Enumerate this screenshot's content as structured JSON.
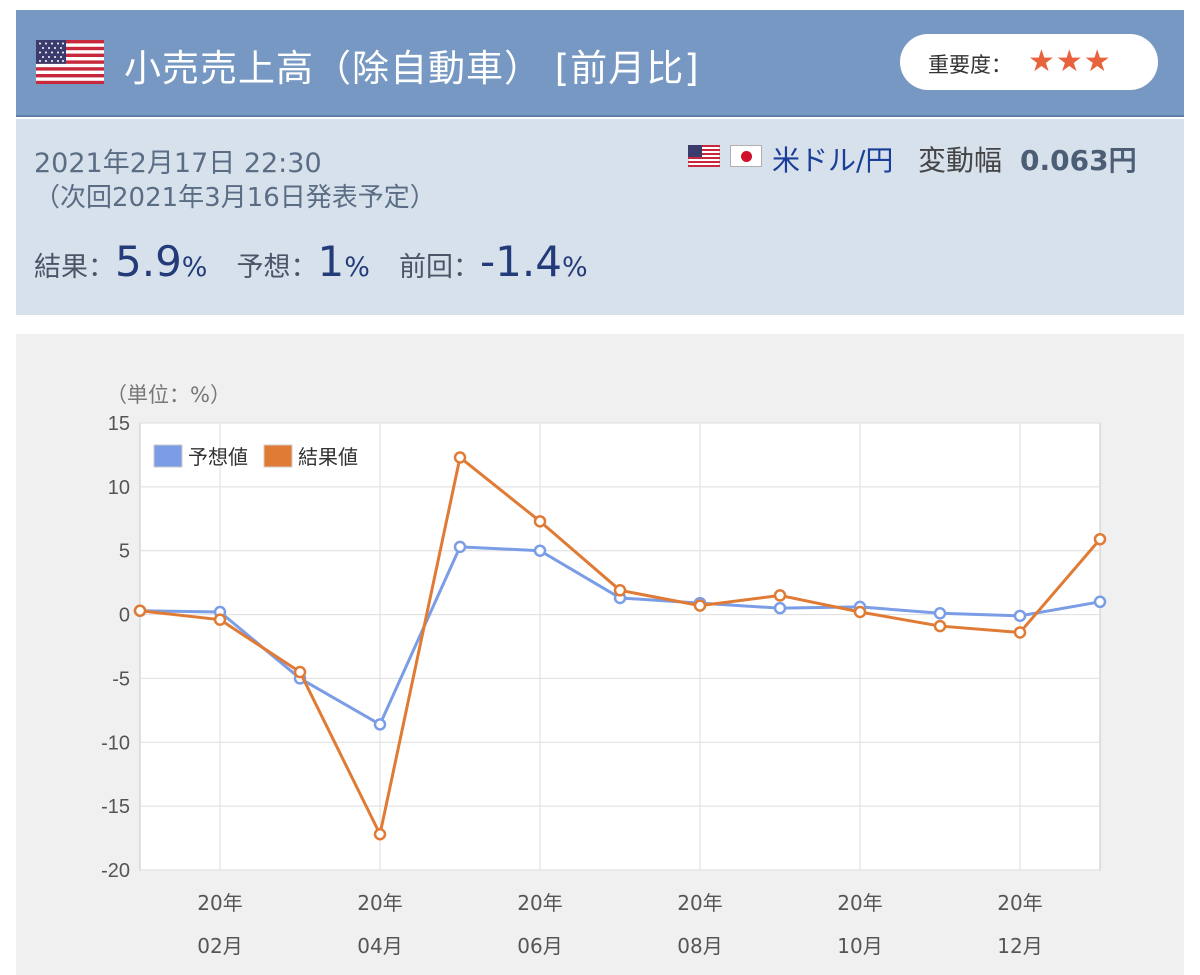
{
  "header": {
    "title": "小売売上高（除自動車） [前月比]",
    "importance_label": "重要度：",
    "stars": "★★★",
    "flag_icon": "us-flag-icon"
  },
  "info": {
    "datetime": "2021年2月17日 22:30",
    "next_release": "（次回2021年3月16日発表予定）",
    "pair": "米ドル/円",
    "range_label": "変動幅",
    "range_value": "0.063円",
    "result_label": "結果：",
    "result_value": "5.9",
    "result_unit": "%",
    "forecast_label": "予想：",
    "forecast_value": "1",
    "forecast_unit": "%",
    "previous_label": "前回：",
    "previous_value": "-1.4",
    "previous_unit": "%"
  },
  "colors": {
    "header_bg": "#7698c2",
    "info_bg": "#d7e1ec",
    "forecast_series": "#7a9de6",
    "result_series": "#e07b35",
    "star": "#e8633b"
  },
  "chart_data": {
    "type": "line",
    "unit_label": "（単位：%）",
    "ylim": [
      -20,
      15
    ],
    "yticks": [
      15,
      10,
      5,
      0,
      -5,
      -10,
      -15,
      -20
    ],
    "x_tick_labels": [
      {
        "index": 1,
        "line1": "20年",
        "line2": "02月"
      },
      {
        "index": 3,
        "line1": "20年",
        "line2": "04月"
      },
      {
        "index": 5,
        "line1": "20年",
        "line2": "06月"
      },
      {
        "index": 7,
        "line1": "20年",
        "line2": "08月"
      },
      {
        "index": 9,
        "line1": "20年",
        "line2": "10月"
      },
      {
        "index": 11,
        "line1": "20年",
        "line2": "12月"
      }
    ],
    "series": [
      {
        "name": "予想値",
        "color": "#7a9de6",
        "values": [
          0.3,
          0.2,
          -5.0,
          -8.6,
          5.3,
          5.0,
          1.3,
          0.9,
          0.5,
          0.6,
          0.1,
          -0.1,
          1.0
        ]
      },
      {
        "name": "結果値",
        "color": "#e07b35",
        "values": [
          0.3,
          -0.4,
          -4.5,
          -17.2,
          12.3,
          7.3,
          1.9,
          0.7,
          1.5,
          0.2,
          -0.9,
          -1.4,
          5.9
        ]
      }
    ],
    "grid": true,
    "legend_position": "top-left"
  }
}
